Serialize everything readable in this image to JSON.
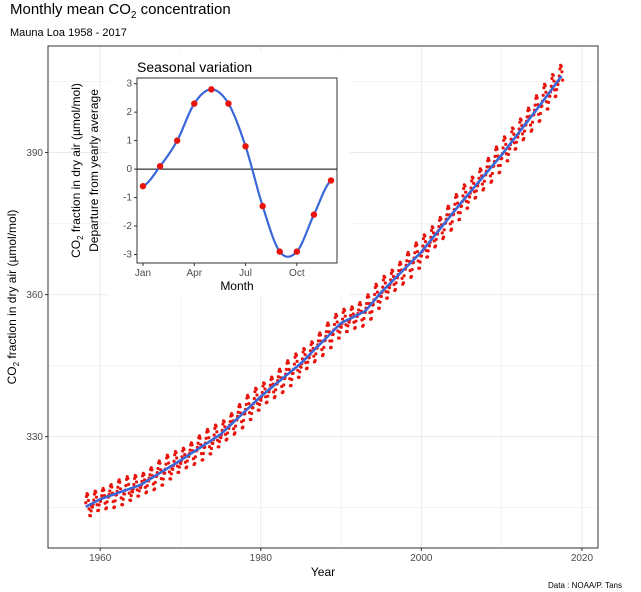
{
  "title_main": "Monthly mean CO",
  "title_sub": "2",
  "title_rest": " concentration",
  "subtitle": "Mauna Loa 1958 - 2017",
  "caption": "Data : NOAA/P. Tans",
  "colors": {
    "points": "#e8140c",
    "trend": "#3a68d8",
    "grid": "#ebebeb",
    "border": "#333333"
  },
  "chart_data": [
    {
      "type": "scatter",
      "title": "Monthly mean CO2 concentration",
      "subtitle": "Mauna Loa 1958 - 2017",
      "xlabel": "Year",
      "ylabel": "CO2 fraction in dry air (µmol/mol)",
      "ylabel_parts": {
        "a": "CO",
        "sub": "2",
        "b": " fraction in dry air (µmol/mol)"
      },
      "xlim": [
        1953.5,
        2022
      ],
      "ylim": [
        306.5,
        412.5
      ],
      "xticks": [
        1960,
        1980,
        2000,
        2020
      ],
      "yticks": [
        330,
        360,
        390
      ],
      "grid": true,
      "series": [
        {
          "kind": "points",
          "x_start": 1958.2,
          "x_end": 2017.6,
          "step": 0.0833,
          "note_display": "monthly observations"
        },
        {
          "kind": "smooth-line"
        }
      ],
      "trend_points": [
        [
          1958.2,
          315.2
        ],
        [
          1960,
          316.8
        ],
        [
          1965,
          319.8
        ],
        [
          1970,
          325.0
        ],
        [
          1975,
          330.5
        ],
        [
          1980,
          338.5
        ],
        [
          1985,
          345.5
        ],
        [
          1990,
          354.0
        ],
        [
          1993,
          356.5
        ],
        [
          1995,
          360.5
        ],
        [
          2000,
          369.0
        ],
        [
          2005,
          379.5
        ],
        [
          2010,
          389.5
        ],
        [
          2015,
          400.5
        ],
        [
          2017.6,
          406.5
        ]
      ],
      "seasonal_amplitude": [
        -0.6,
        0.1,
        1.0,
        2.3,
        2.8,
        2.3,
        0.8,
        -1.3,
        -2.9,
        -2.9,
        -1.6,
        -0.4
      ]
    },
    {
      "type": "line",
      "title": "Seasonal variation",
      "xlabel": "Month",
      "ylabel_line1_parts": {
        "a": "CO",
        "sub": "2",
        "b": " fraction in dry air (µmol/mol)"
      },
      "ylabel_line2": "Departure from yearly average",
      "ylim": [
        -3.3,
        3.2
      ],
      "yticks": [
        3,
        2,
        1,
        0,
        -1,
        -2,
        -3
      ],
      "xticks": [
        "Jan",
        "Apr",
        "Jul",
        "Oct"
      ],
      "xtick_months": [
        1,
        4,
        7,
        10
      ],
      "months": [
        1,
        2,
        3,
        4,
        5,
        6,
        7,
        8,
        9,
        10,
        11,
        12
      ],
      "values": [
        -0.6,
        0.1,
        1.0,
        2.3,
        2.8,
        2.3,
        0.8,
        -1.3,
        -2.9,
        -2.9,
        -1.6,
        -0.4
      ],
      "zero_line": true,
      "grid": false
    }
  ]
}
